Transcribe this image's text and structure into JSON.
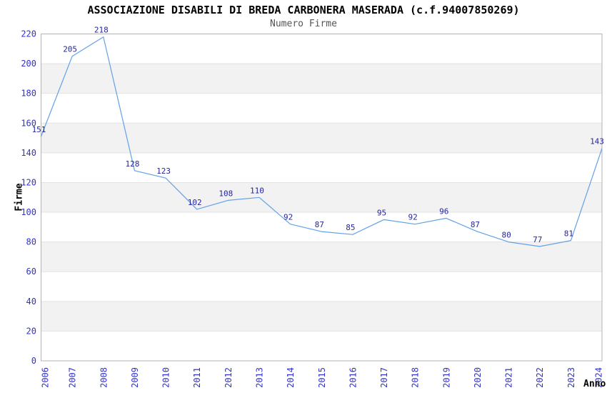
{
  "chart_data": {
    "type": "line",
    "title": "ASSOCIAZIONE DISABILI DI BREDA CARBONERA MASERADA (c.f.94007850269)",
    "subtitle": "Numero Firme",
    "xlabel": "Anno",
    "ylabel": "Firme",
    "categories": [
      "2006",
      "2007",
      "2008",
      "2009",
      "2010",
      "2011",
      "2012",
      "2013",
      "2014",
      "2015",
      "2016",
      "2017",
      "2018",
      "2019",
      "2020",
      "2021",
      "2022",
      "2023",
      "2024"
    ],
    "values": [
      151,
      205,
      218,
      128,
      123,
      102,
      108,
      110,
      92,
      87,
      85,
      95,
      92,
      96,
      87,
      80,
      77,
      81,
      143
    ],
    "series_name": "Numero Firme",
    "ylim": [
      0,
      220
    ],
    "yticks": [
      0,
      20,
      40,
      60,
      80,
      100,
      120,
      140,
      160,
      180,
      200,
      220
    ],
    "grid": "alternating-horizontal-bands",
    "legend": "none",
    "data_labels_visible": true,
    "colors": {
      "line": "#62a1e6",
      "data_label": "#26269b",
      "tick_label": "#3232cd",
      "band": "#f2f2f2",
      "band_alt": "#ffffff",
      "gridline": "#e3e3e3",
      "plot_border": "#b3b3b3",
      "title": "#000000",
      "subtitle": "#555555",
      "axis_title": "#000000",
      "background": "#ffffff"
    }
  }
}
